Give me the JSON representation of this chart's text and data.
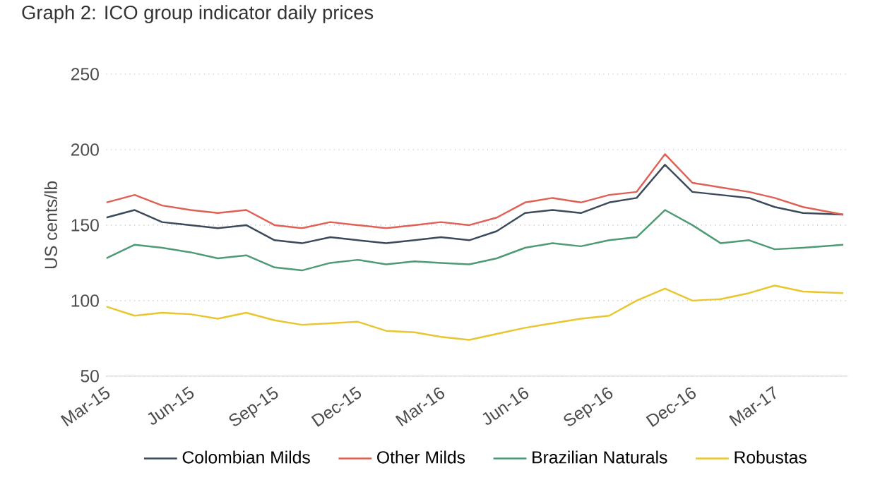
{
  "chart_data": {
    "type": "line",
    "title": "Graph 2: ICO group indicator daily prices",
    "ylabel": "US cents/lb",
    "x": [
      "2015-03-01",
      "2015-04-01",
      "2015-05-01",
      "2015-06-01",
      "2015-07-01",
      "2015-08-01",
      "2015-09-01",
      "2015-10-01",
      "2015-11-01",
      "2015-12-01",
      "2016-01-01",
      "2016-02-01",
      "2016-03-01",
      "2016-04-01",
      "2016-05-01",
      "2016-06-01",
      "2016-07-01",
      "2016-08-01",
      "2016-09-01",
      "2016-10-01",
      "2016-11-01",
      "2016-12-01",
      "2017-01-01",
      "2017-02-01",
      "2017-03-01",
      "2017-04-01",
      "2017-05-15"
    ],
    "series": [
      {
        "name": "Colombian Milds",
        "color": "#3b4a5a",
        "values": [
          155,
          160,
          152,
          150,
          148,
          150,
          140,
          138,
          142,
          140,
          138,
          140,
          142,
          140,
          146,
          158,
          160,
          158,
          165,
          168,
          190,
          172,
          170,
          168,
          162,
          158,
          157
        ]
      },
      {
        "name": "Other Milds",
        "color": "#e06055",
        "values": [
          165,
          170,
          163,
          160,
          158,
          160,
          150,
          148,
          152,
          150,
          148,
          150,
          152,
          150,
          155,
          165,
          168,
          165,
          170,
          172,
          197,
          178,
          175,
          172,
          168,
          162,
          157
        ]
      },
      {
        "name": "Brazilian Naturals",
        "color": "#4e9a74",
        "values": [
          128,
          137,
          135,
          132,
          128,
          130,
          122,
          120,
          125,
          127,
          124,
          126,
          125,
          124,
          128,
          135,
          138,
          136,
          140,
          142,
          160,
          150,
          138,
          140,
          134,
          135,
          137
        ]
      },
      {
        "name": "Robustas",
        "color": "#e8c630",
        "values": [
          96,
          90,
          92,
          91,
          88,
          92,
          87,
          84,
          85,
          86,
          80,
          79,
          76,
          74,
          78,
          82,
          85,
          88,
          90,
          100,
          108,
          100,
          101,
          105,
          110,
          106,
          105
        ]
      }
    ],
    "xlim": [
      "2015-03-01",
      "2017-05-20"
    ],
    "xticks": [
      {
        "value": "2015-03-01",
        "label": "Mar-15"
      },
      {
        "value": "2015-06-01",
        "label": "Jun-15"
      },
      {
        "value": "2015-09-01",
        "label": "Sep-15"
      },
      {
        "value": "2015-12-01",
        "label": "Dec-15"
      },
      {
        "value": "2016-03-01",
        "label": "Mar-16"
      },
      {
        "value": "2016-06-01",
        "label": "Jun-16"
      },
      {
        "value": "2016-09-01",
        "label": "Sep-16"
      },
      {
        "value": "2016-12-01",
        "label": "Dec-16"
      },
      {
        "value": "2017-03-01",
        "label": "Mar-17"
      }
    ],
    "ylim": [
      50,
      250
    ],
    "yticks": [
      50,
      100,
      150,
      200,
      250
    ],
    "grid": "y",
    "legend": "bottom",
    "marker": "none",
    "line_style": "solid"
  }
}
